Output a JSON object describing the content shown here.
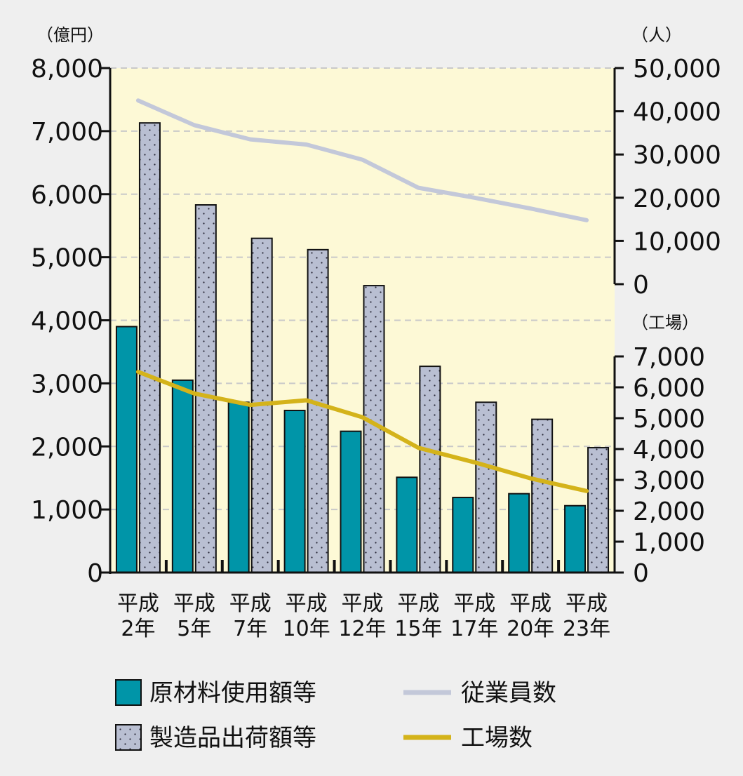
{
  "chart_data": {
    "type": "bar",
    "categories": [
      [
        "平成",
        "2年"
      ],
      [
        "平成",
        "5年"
      ],
      [
        "平成",
        "7年"
      ],
      [
        "平成",
        "10年"
      ],
      [
        "平成",
        "12年"
      ],
      [
        "平成",
        "15年"
      ],
      [
        "平成",
        "17年"
      ],
      [
        "平成",
        "20年"
      ],
      [
        "平成",
        "23年"
      ]
    ],
    "left_axis": {
      "unit": "（億円）",
      "ylim": [
        0,
        8000
      ],
      "ticks": [
        0,
        1000,
        2000,
        3000,
        4000,
        5000,
        6000,
        7000,
        8000
      ],
      "tick_labels": [
        "0",
        "1,000",
        "2,000",
        "3,000",
        "4,000",
        "5,000",
        "6,000",
        "7,000",
        "8,000"
      ]
    },
    "right_axis_employees": {
      "unit": "（人）",
      "ylim": [
        0,
        50000
      ],
      "ticks": [
        0,
        10000,
        20000,
        30000,
        40000,
        50000
      ],
      "tick_labels": [
        "0",
        "10,000",
        "20,000",
        "30,000",
        "40,000",
        "50,000"
      ]
    },
    "right_axis_factories": {
      "unit": "（工場）",
      "ylim": [
        0,
        7000
      ],
      "ticks": [
        0,
        1000,
        2000,
        3000,
        4000,
        5000,
        6000,
        7000
      ],
      "tick_labels": [
        "0",
        "1,000",
        "2,000",
        "3,000",
        "4,000",
        "5,000",
        "6,000",
        "7,000"
      ]
    },
    "series": [
      {
        "name": "原材料使用額等",
        "type": "bar",
        "axis": "left",
        "color": "#0095a8",
        "values": [
          3900,
          3050,
          2700,
          2570,
          2240,
          1510,
          1190,
          1250,
          1060
        ]
      },
      {
        "name": "製造品出荷額等",
        "type": "bar",
        "axis": "left",
        "color": "#b9bfd2",
        "pattern": "dots",
        "values": [
          7130,
          5830,
          5300,
          5120,
          4550,
          3270,
          2700,
          2430,
          1980
        ]
      },
      {
        "name": "従業員数",
        "type": "line",
        "axis": "right_employees",
        "color": "#c3c8d9",
        "values": [
          42500,
          36800,
          33500,
          32300,
          28800,
          22300,
          20000,
          17500,
          14800
        ]
      },
      {
        "name": "工場数",
        "type": "line",
        "axis": "right_factories",
        "color": "#d4b31a",
        "values": [
          6500,
          5800,
          5430,
          5580,
          5030,
          4040,
          3570,
          3050,
          2640
        ]
      }
    ],
    "grid": true,
    "legend_position": "bottom"
  }
}
